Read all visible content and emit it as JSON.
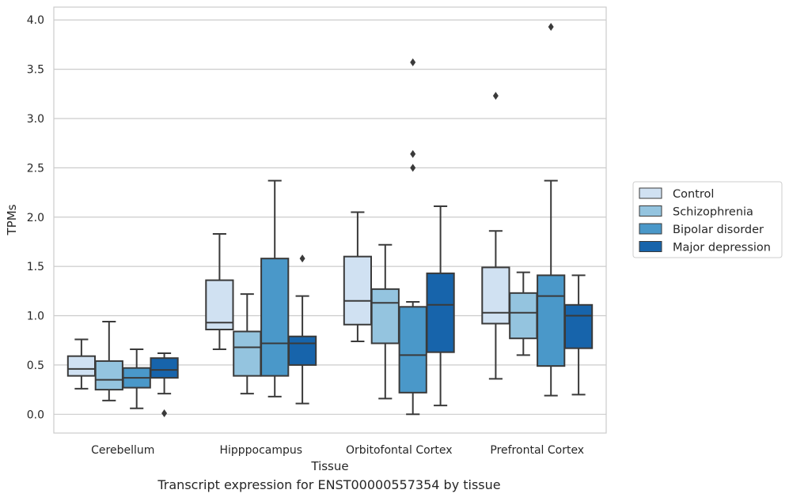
{
  "caption": "Transcript expression for ENST00000557354 by tissue",
  "chart_data": {
    "type": "boxplot",
    "xlabel": "Tissue",
    "ylabel": "TPMs",
    "ylim": [
      -0.19,
      4.13
    ],
    "yticks": [
      0.0,
      0.5,
      1.0,
      1.5,
      2.0,
      2.5,
      3.0,
      3.5,
      4.0
    ],
    "ytick_labels": [
      "0.0",
      "0.5",
      "1.0",
      "1.5",
      "2.0",
      "2.5",
      "3.0",
      "3.5",
      "4.0"
    ],
    "grid": true,
    "legend_position": "right",
    "categories": [
      "Cerebellum",
      "Hipppocampus",
      "Orbitofontal Cortex",
      "Prefrontal Cortex"
    ],
    "series": [
      {
        "name": "Control",
        "color": "#d0e1f2",
        "boxes": [
          {
            "whislo": 0.26,
            "q1": 0.39,
            "med": 0.46,
            "q3": 0.59,
            "whishi": 0.76,
            "fliers": []
          },
          {
            "whislo": 0.66,
            "q1": 0.86,
            "med": 0.93,
            "q3": 1.36,
            "whishi": 1.83,
            "fliers": []
          },
          {
            "whislo": 0.74,
            "q1": 0.91,
            "med": 1.15,
            "q3": 1.6,
            "whishi": 2.05,
            "fliers": []
          },
          {
            "whislo": 0.36,
            "q1": 0.92,
            "med": 1.03,
            "q3": 1.49,
            "whishi": 1.86,
            "fliers": [
              3.23
            ]
          }
        ]
      },
      {
        "name": "Schizophrenia",
        "color": "#94c4df",
        "boxes": [
          {
            "whislo": 0.14,
            "q1": 0.25,
            "med": 0.35,
            "q3": 0.54,
            "whishi": 0.94,
            "fliers": []
          },
          {
            "whislo": 0.21,
            "q1": 0.39,
            "med": 0.68,
            "q3": 0.84,
            "whishi": 1.22,
            "fliers": []
          },
          {
            "whislo": 0.16,
            "q1": 0.72,
            "med": 1.13,
            "q3": 1.27,
            "whishi": 1.72,
            "fliers": []
          },
          {
            "whislo": 0.6,
            "q1": 0.77,
            "med": 1.03,
            "q3": 1.23,
            "whishi": 1.44,
            "fliers": []
          }
        ]
      },
      {
        "name": "Bipolar disorder",
        "color": "#4a98c9",
        "boxes": [
          {
            "whislo": 0.06,
            "q1": 0.27,
            "med": 0.37,
            "q3": 0.47,
            "whishi": 0.66,
            "fliers": []
          },
          {
            "whislo": 0.18,
            "q1": 0.39,
            "med": 0.72,
            "q3": 1.58,
            "whishi": 2.37,
            "fliers": []
          },
          {
            "whislo": 0.0,
            "q1": 0.22,
            "med": 0.6,
            "q3": 1.09,
            "whishi": 1.14,
            "fliers": [
              2.5,
              2.64,
              3.57
            ]
          },
          {
            "whislo": 0.19,
            "q1": 0.49,
            "med": 1.2,
            "q3": 1.41,
            "whishi": 2.37,
            "fliers": [
              3.93
            ]
          }
        ]
      },
      {
        "name": "Major depression",
        "color": "#1764ab",
        "boxes": [
          {
            "whislo": 0.21,
            "q1": 0.37,
            "med": 0.45,
            "q3": 0.57,
            "whishi": 0.62,
            "fliers": [
              0.01
            ]
          },
          {
            "whislo": 0.11,
            "q1": 0.5,
            "med": 0.72,
            "q3": 0.79,
            "whishi": 1.2,
            "fliers": [
              1.58
            ]
          },
          {
            "whislo": 0.09,
            "q1": 0.63,
            "med": 1.11,
            "q3": 1.43,
            "whishi": 2.11,
            "fliers": []
          },
          {
            "whislo": 0.2,
            "q1": 0.67,
            "med": 1.0,
            "q3": 1.11,
            "whishi": 1.41,
            "fliers": []
          }
        ]
      }
    ]
  }
}
